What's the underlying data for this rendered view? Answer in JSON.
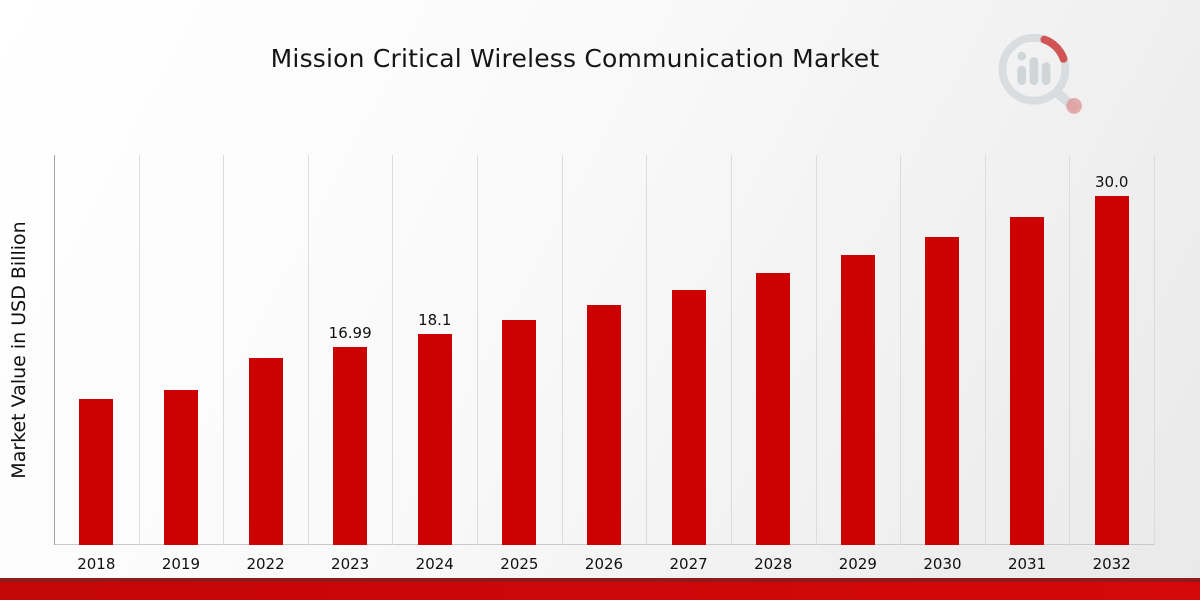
{
  "title": "Mission Critical Wireless Communication Market",
  "chart_data": {
    "type": "bar",
    "title": "Mission Critical Wireless Communication Market",
    "xlabel": "",
    "ylabel": "Market Value in USD Billion",
    "categories": [
      "2018",
      "2019",
      "2022",
      "2023",
      "2024",
      "2025",
      "2026",
      "2027",
      "2028",
      "2029",
      "2030",
      "2031",
      "2032"
    ],
    "values": [
      12.5,
      13.3,
      16.1,
      16.99,
      18.1,
      19.3,
      20.6,
      21.9,
      23.4,
      24.9,
      26.5,
      28.2,
      30.0
    ],
    "bar_labels": [
      "",
      "",
      "",
      "16.99",
      "18.1",
      "",
      "",
      "",
      "",
      "",
      "",
      "",
      "30.0"
    ],
    "ylim": [
      0,
      33.5
    ],
    "grid": "vertical-only",
    "legend": "none"
  },
  "colors": {
    "bar": "#CC0202",
    "footer_top": "#8E1A1A",
    "footer_main": "#C40606",
    "gridline": "#DCDCDC",
    "background_end": "#E9E9E9"
  },
  "branding": {
    "logo_icon": "bar-chart-magnifier-logo"
  }
}
